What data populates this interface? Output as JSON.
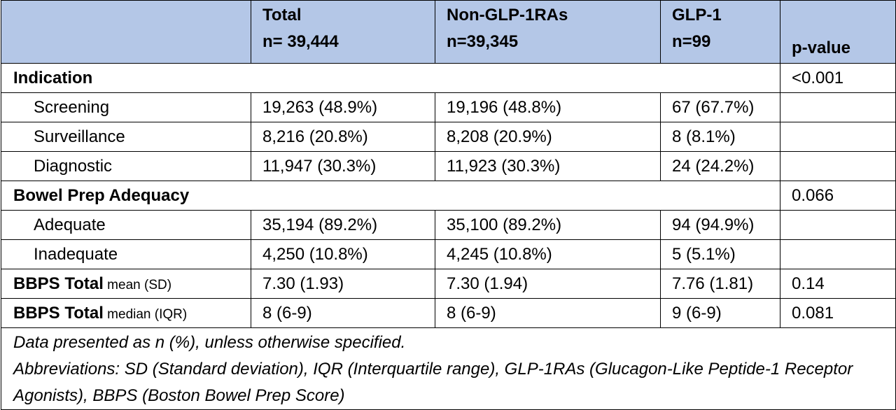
{
  "header": {
    "col_total_title": "Total",
    "col_total_n": "n= 39,444",
    "col_non_title": "Non-GLP-1RAs",
    "col_non_n": "n=39,345",
    "col_glp_title": "GLP-1",
    "col_glp_n": "n=99",
    "col_p": "p-value"
  },
  "sections": {
    "indication": {
      "label": "Indication",
      "p": "<0.001",
      "rows": [
        {
          "label": "Screening",
          "total": "19,263 (48.9%)",
          "non": "19,196 (48.8%)",
          "glp": "67 (67.7%)"
        },
        {
          "label": "Surveillance",
          "total": "8,216 (20.8%)",
          "non": "8,208 (20.9%)",
          "glp": "8 (8.1%)"
        },
        {
          "label": "Diagnostic",
          "total": "11,947 (30.3%)",
          "non": "11,923 (30.3%)",
          "glp": "24 (24.2%)"
        }
      ]
    },
    "bowel_prep": {
      "label": "Bowel Prep Adequacy",
      "p": "0.066",
      "rows": [
        {
          "label": "Adequate",
          "total": "35,194 (89.2%)",
          "non": "35,100 (89.2%)",
          "glp": "94 (94.9%)"
        },
        {
          "label": "Inadequate",
          "total": "4,250 (10.8%)",
          "non": "4,245 (10.8%)",
          "glp": "5 (5.1%)"
        }
      ]
    },
    "bbps_mean": {
      "label_bold": "BBPS Total",
      "label_small": " mean (SD)",
      "total": "7.30 (1.93)",
      "non": "7.30 (1.94)",
      "glp": "7.76 (1.81)",
      "p": "0.14"
    },
    "bbps_median": {
      "label_bold": "BBPS Total",
      "label_small": " median (IQR)",
      "total": "8 (6-9)",
      "non": "8 (6-9)",
      "glp": "9 (6-9)",
      "p": "0.081"
    }
  },
  "footnote": {
    "line1": "Data presented as n (%), unless otherwise specified.",
    "line2": "Abbreviations: SD (Standard deviation), IQR (Interquartile range), GLP-1RAs (Glucagon-Like Peptide-1 Receptor Agonists), BBPS (Boston Bowel Prep Score)"
  }
}
